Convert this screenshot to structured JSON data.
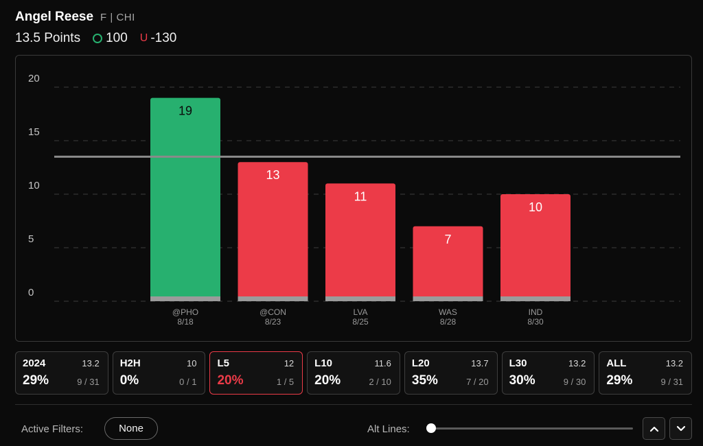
{
  "player": {
    "name": "Angel Reese",
    "meta": "F | CHI",
    "line_label": "13.5 Points",
    "over_odds": "100",
    "under_letter": "U",
    "under_odds": "-130"
  },
  "colors": {
    "hit": "#27b06f",
    "miss": "#ec3b48",
    "base": "#9b9b9b",
    "line": "#8a8a8a"
  },
  "chart_data": {
    "type": "bar",
    "categories": [
      "@PHO",
      "@CON",
      "LVA",
      "WAS",
      "IND"
    ],
    "dates": [
      "8/18",
      "8/23",
      "8/25",
      "8/28",
      "8/30"
    ],
    "values": [
      19,
      13,
      11,
      7,
      10
    ],
    "line_value": 13.5,
    "ylim": [
      0,
      20
    ],
    "yticks": [
      "0",
      "5",
      "10",
      "15",
      "20"
    ],
    "grid": true
  },
  "stats": [
    {
      "label": "2024",
      "avg": "13.2",
      "pct": "29%",
      "hits": "9 / 31",
      "active": false
    },
    {
      "label": "H2H",
      "avg": "10",
      "pct": "0%",
      "hits": "0 / 1",
      "active": false
    },
    {
      "label": "L5",
      "avg": "12",
      "pct": "20%",
      "hits": "1 / 5",
      "active": true
    },
    {
      "label": "L10",
      "avg": "11.6",
      "pct": "20%",
      "hits": "2 / 10",
      "active": false
    },
    {
      "label": "L20",
      "avg": "13.7",
      "pct": "35%",
      "hits": "7 / 20",
      "active": false
    },
    {
      "label": "L30",
      "avg": "13.2",
      "pct": "30%",
      "hits": "9 / 30",
      "active": false
    },
    {
      "label": "ALL",
      "avg": "13.2",
      "pct": "29%",
      "hits": "9 / 31",
      "active": false
    }
  ],
  "footer": {
    "filters_label": "Active Filters:",
    "filters_value": "None",
    "alt_lines_label": "Alt Lines:",
    "slider_level": 0
  }
}
